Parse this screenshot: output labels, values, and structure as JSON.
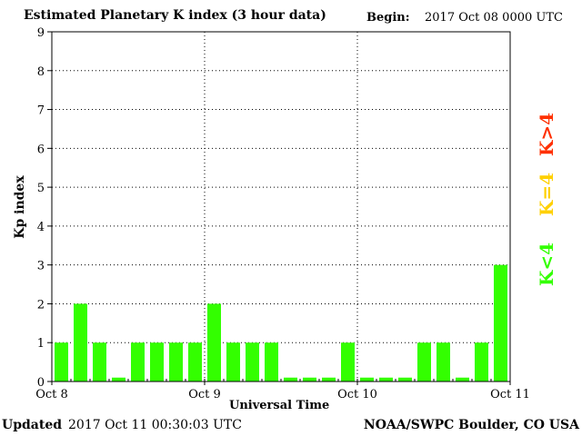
{
  "header": {
    "title": "Estimated Planetary K index (3 hour data)",
    "begin_label": "Begin:",
    "begin_value": "2017 Oct 08 0000 UTC"
  },
  "footer": {
    "updated_label": "Updated",
    "updated_value": "2017 Oct 11 00:30:03 UTC",
    "credit": "NOAA/SWPC Boulder, CO USA"
  },
  "legend": {
    "high": {
      "label": "K>4",
      "color": "#ff3000"
    },
    "mid": {
      "label": "K=4",
      "color": "#ffd000"
    },
    "low": {
      "label": "K<4",
      "color": "#33ff00"
    }
  },
  "chart_data": {
    "type": "bar",
    "title": "Estimated Planetary K index (3 hour data)",
    "xlabel": "Universal Time",
    "ylabel": "Kp index",
    "ylim": [
      0,
      9
    ],
    "yticks": [
      0,
      1,
      2,
      3,
      4,
      5,
      6,
      7,
      8,
      9
    ],
    "xticks": [
      "Oct 8",
      "Oct 9",
      "Oct 10",
      "Oct 11"
    ],
    "grid": true,
    "interval": "3 hour",
    "bar_color": "#33ff00",
    "values": [
      1,
      2,
      1,
      0.1,
      1,
      1,
      1,
      1,
      2,
      1,
      1,
      1,
      0.1,
      0.1,
      0.1,
      1,
      0.1,
      0.1,
      0.1,
      1,
      1,
      0.1,
      1,
      3
    ]
  }
}
